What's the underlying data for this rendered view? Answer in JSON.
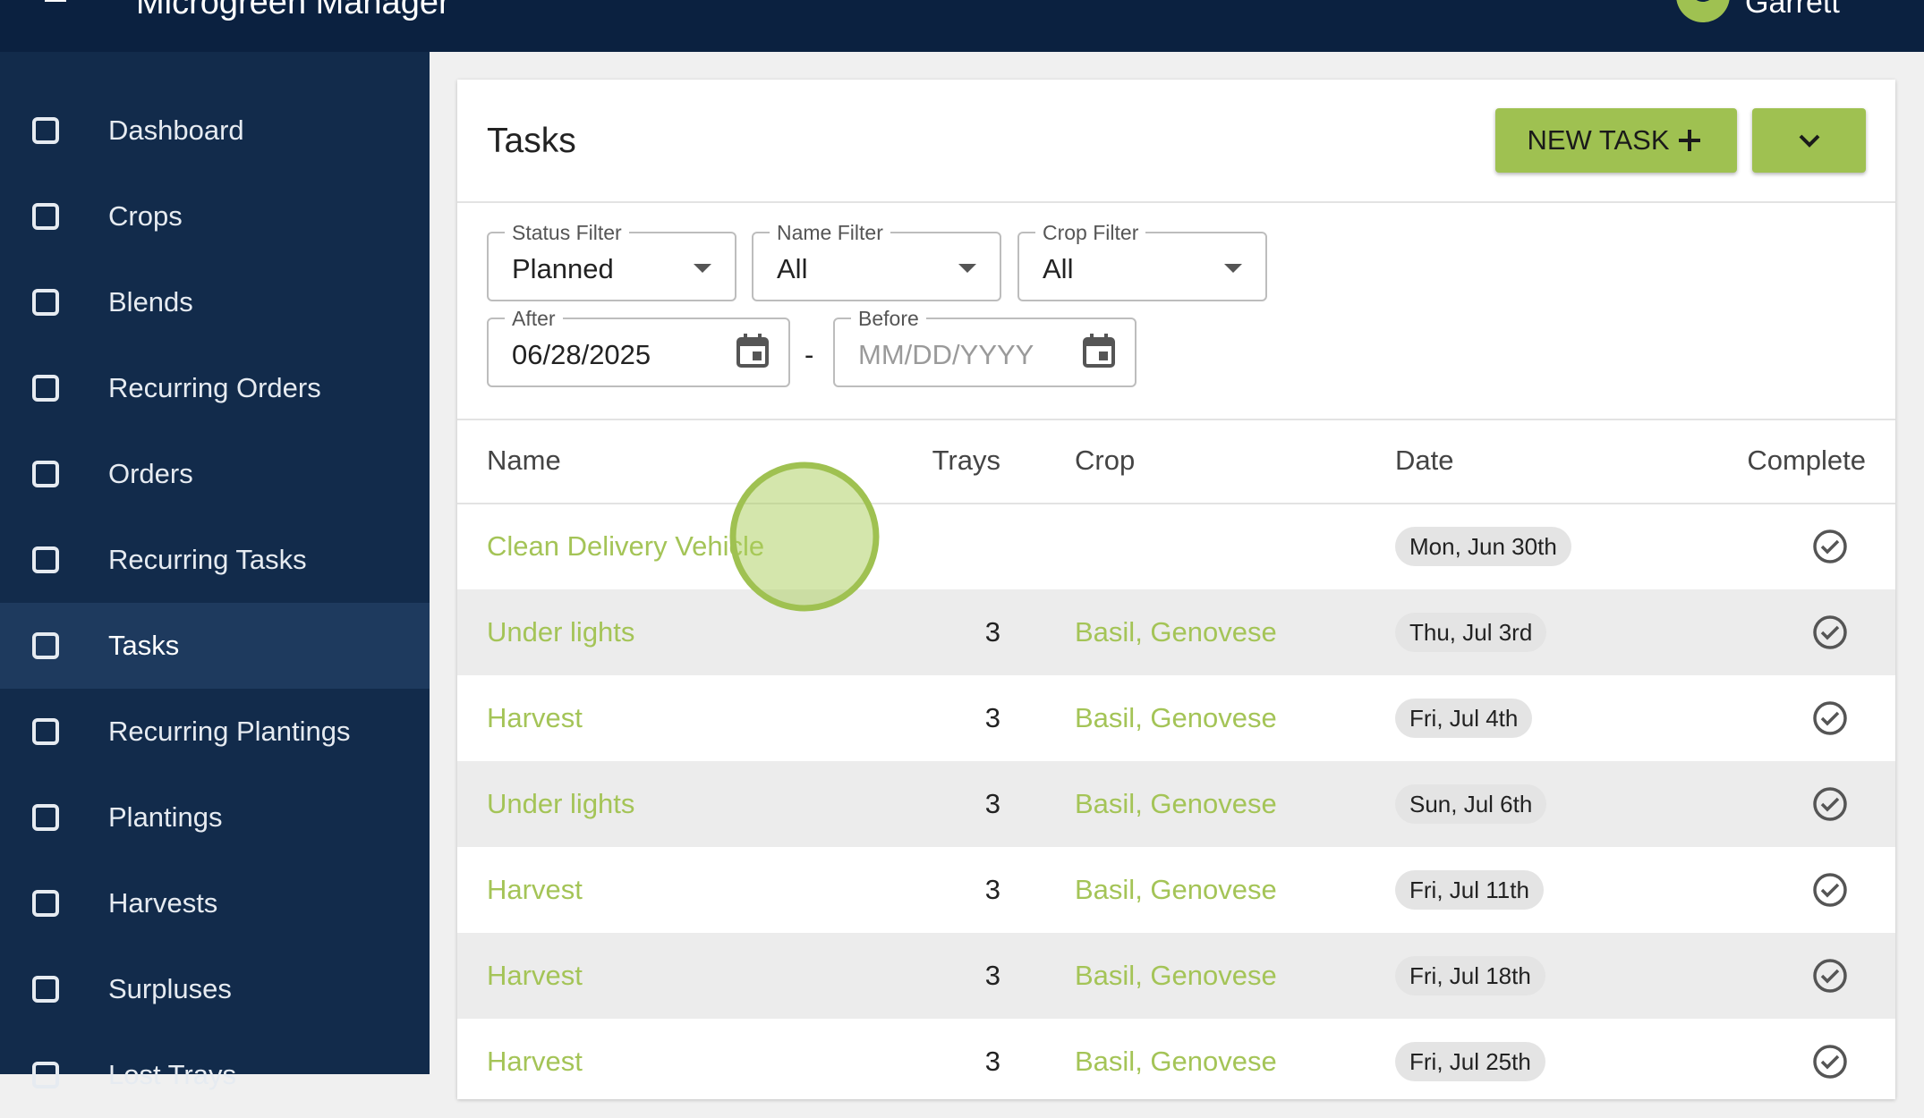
{
  "app": {
    "title": "Microgreen Manager",
    "user": "Garrett"
  },
  "nav": [
    "Dashboard",
    "Crops",
    "Blends",
    "Recurring Orders",
    "Orders",
    "Recurring Tasks",
    "Tasks",
    "Recurring Plantings",
    "Plantings",
    "Harvests",
    "Surpluses",
    "Lost Trays"
  ],
  "page": {
    "title": "Tasks",
    "new_button": "NEW TASK"
  },
  "filters": {
    "status": {
      "label": "Status Filter",
      "value": "Planned"
    },
    "name": {
      "label": "Name Filter",
      "value": "All"
    },
    "crop": {
      "label": "Crop Filter",
      "value": "All"
    },
    "after": {
      "label": "After",
      "value": "06/28/2025"
    },
    "separator": "-",
    "before": {
      "label": "Before",
      "placeholder": "MM/DD/YYYY"
    }
  },
  "table": {
    "columns": [
      "Name",
      "Trays",
      "Crop",
      "Date",
      "Complete"
    ],
    "rows": [
      {
        "name": "Clean Delivery Vehicle",
        "trays": null,
        "crop": null,
        "date": "Mon, Jun 30th"
      },
      {
        "name": "Under lights",
        "trays": 3,
        "crop": "Basil, Genovese",
        "date": "Thu, Jul 3rd"
      },
      {
        "name": "Harvest",
        "trays": 3,
        "crop": "Basil, Genovese",
        "date": "Fri, Jul 4th"
      },
      {
        "name": "Under lights",
        "trays": 3,
        "crop": "Basil, Genovese",
        "date": "Sun, Jul 6th"
      },
      {
        "name": "Harvest",
        "trays": 3,
        "crop": "Basil, Genovese",
        "date": "Fri, Jul 11th"
      },
      {
        "name": "Harvest",
        "trays": 3,
        "crop": "Basil, Genovese",
        "date": "Fri, Jul 18th"
      },
      {
        "name": "Harvest",
        "trays": 3,
        "crop": "Basil, Genovese",
        "date": "Fri, Jul 25th"
      }
    ]
  }
}
